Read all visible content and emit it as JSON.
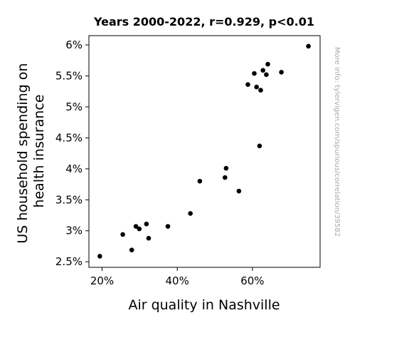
{
  "chart_data": {
    "type": "scatter",
    "title": "Years 2000-2022, r=0.929, p<0.01",
    "xlabel": "Air quality in Nashville",
    "ylabel_lines": [
      "US household spending on",
      "health insurance"
    ],
    "watermark": "More info: tylervigen.com/spurious/correlation/39582",
    "xlim": [
      0.165,
      0.78
    ],
    "ylim": [
      0.0241,
      0.0615
    ],
    "xticks": [
      {
        "value": 0.2,
        "label": "20%"
      },
      {
        "value": 0.4,
        "label": "40%"
      },
      {
        "value": 0.6,
        "label": "60%"
      }
    ],
    "yticks": [
      {
        "value": 0.025,
        "label": "2.5%"
      },
      {
        "value": 0.03,
        "label": "3%"
      },
      {
        "value": 0.035,
        "label": "3.5%"
      },
      {
        "value": 0.04,
        "label": "4%"
      },
      {
        "value": 0.045,
        "label": "4.5%"
      },
      {
        "value": 0.05,
        "label": "5%"
      },
      {
        "value": 0.055,
        "label": "5.5%"
      },
      {
        "value": 0.06,
        "label": "6%"
      }
    ],
    "grid": false,
    "marker_color": "#000000",
    "points": [
      {
        "x": 0.194,
        "y": 0.0259
      },
      {
        "x": 0.255,
        "y": 0.0294
      },
      {
        "x": 0.279,
        "y": 0.0269
      },
      {
        "x": 0.29,
        "y": 0.0307
      },
      {
        "x": 0.299,
        "y": 0.0303
      },
      {
        "x": 0.318,
        "y": 0.0311
      },
      {
        "x": 0.324,
        "y": 0.0288
      },
      {
        "x": 0.375,
        "y": 0.0307
      },
      {
        "x": 0.435,
        "y": 0.0328
      },
      {
        "x": 0.46,
        "y": 0.038
      },
      {
        "x": 0.527,
        "y": 0.0386
      },
      {
        "x": 0.53,
        "y": 0.0401
      },
      {
        "x": 0.564,
        "y": 0.0364
      },
      {
        "x": 0.588,
        "y": 0.0536
      },
      {
        "x": 0.605,
        "y": 0.0554
      },
      {
        "x": 0.611,
        "y": 0.0532
      },
      {
        "x": 0.619,
        "y": 0.0437
      },
      {
        "x": 0.622,
        "y": 0.0527
      },
      {
        "x": 0.628,
        "y": 0.0559
      },
      {
        "x": 0.637,
        "y": 0.0552
      },
      {
        "x": 0.641,
        "y": 0.0569
      },
      {
        "x": 0.677,
        "y": 0.0556
      },
      {
        "x": 0.749,
        "y": 0.0598
      }
    ]
  }
}
